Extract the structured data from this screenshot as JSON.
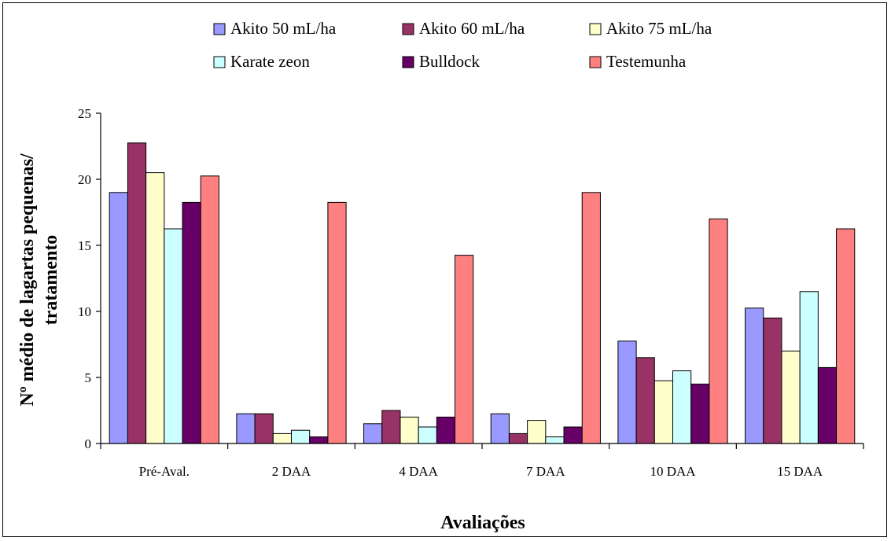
{
  "chart_data": {
    "type": "bar",
    "title": "",
    "xlabel": "Avaliações",
    "ylabel": "Nº médio de lagartas pequenas/ tratamento",
    "ylabel_lines": [
      "Nº médio de lagartas pequenas/",
      "tratamento"
    ],
    "ylim": [
      0,
      25
    ],
    "yticks": [
      0,
      5,
      10,
      15,
      20,
      25
    ],
    "grid": false,
    "legend_position": "top",
    "categories": [
      "Pré-Aval.",
      "2 DAA",
      "4 DAA",
      "7 DAA",
      "10 DAA",
      "15 DAA"
    ],
    "series": [
      {
        "name": "Akito 50 mL/ha",
        "color": "#9999FF",
        "values": [
          19.0,
          2.25,
          1.5,
          2.25,
          7.75,
          10.25
        ]
      },
      {
        "name": "Akito 60 mL/ha",
        "color": "#993366",
        "values": [
          22.75,
          2.25,
          2.5,
          0.75,
          6.5,
          9.5
        ]
      },
      {
        "name": "Akito 75 mL/ha",
        "color": "#FFFFCC",
        "values": [
          20.5,
          0.75,
          2.0,
          1.75,
          4.75,
          7.0
        ]
      },
      {
        "name": "Karate zeon",
        "color": "#CCFFFF",
        "values": [
          16.25,
          1.0,
          1.25,
          0.5,
          5.5,
          11.5
        ]
      },
      {
        "name": "Bulldock",
        "color": "#660066",
        "values": [
          18.25,
          0.5,
          2.0,
          1.25,
          4.5,
          5.75
        ]
      },
      {
        "name": "Testemunha",
        "color": "#FF8080",
        "values": [
          20.25,
          18.25,
          14.25,
          19.0,
          17.0,
          16.25
        ]
      }
    ]
  }
}
